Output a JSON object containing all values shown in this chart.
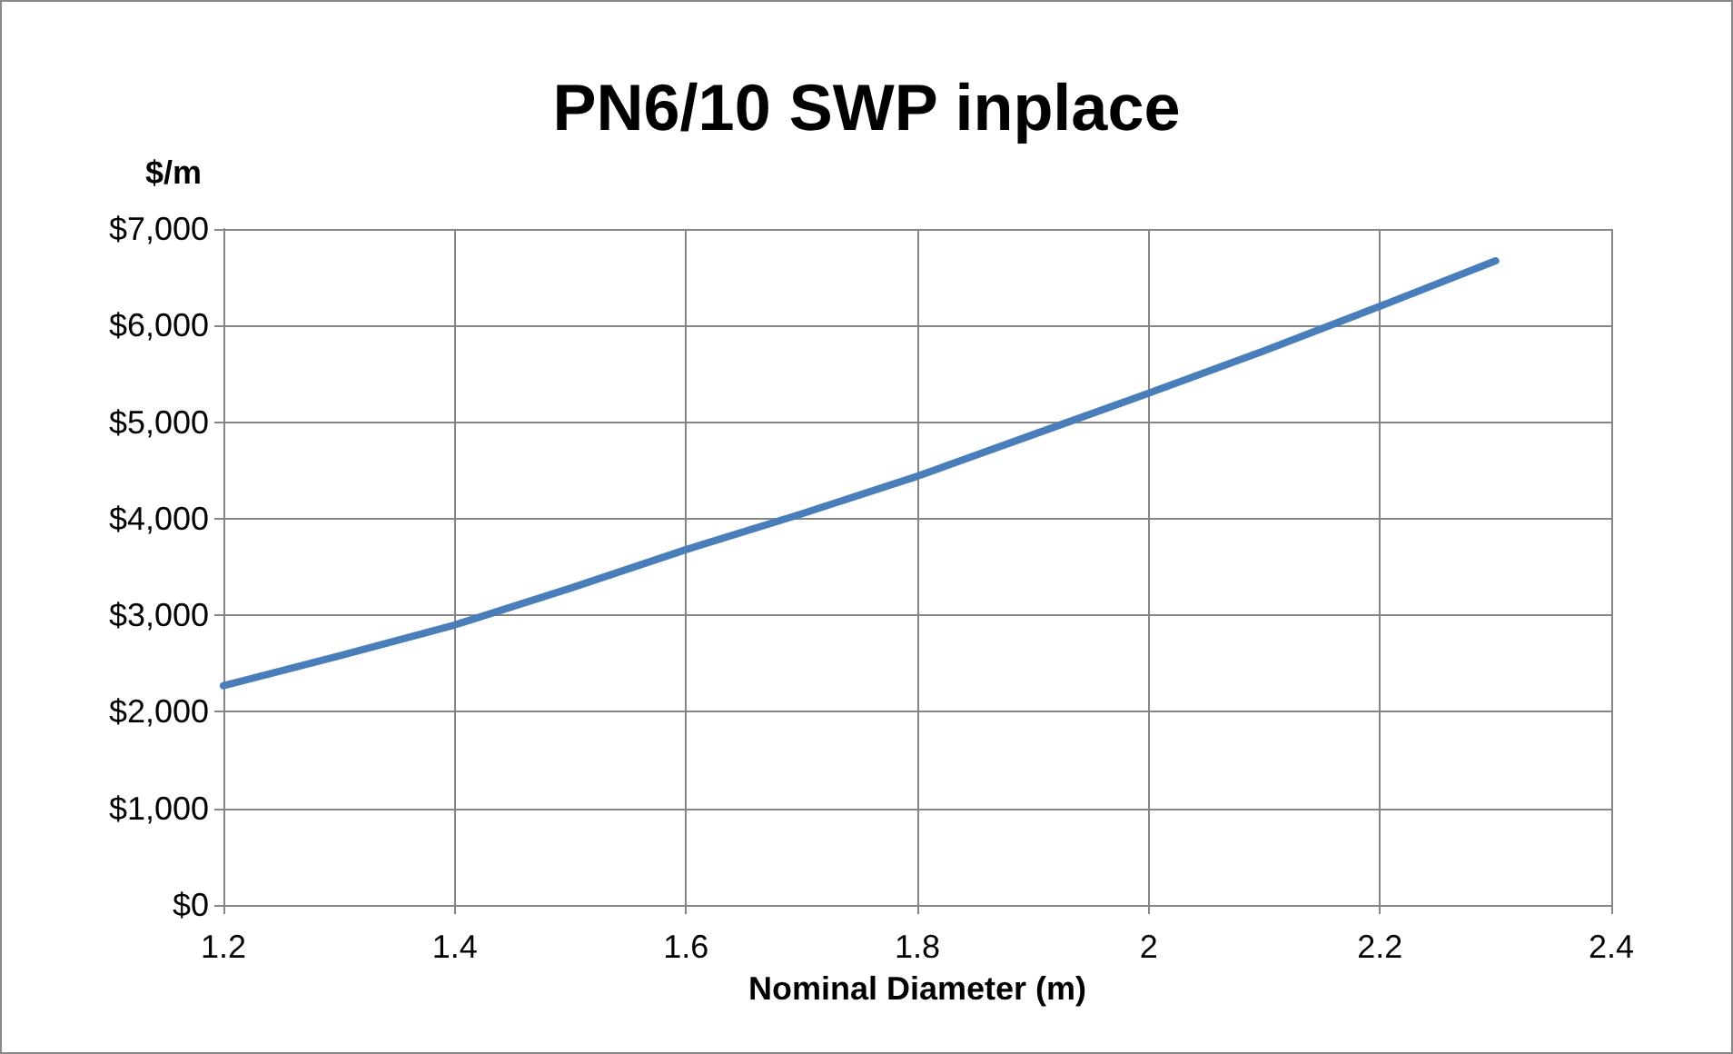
{
  "chart_data": {
    "type": "line",
    "title": "PN6/10 SWP inplace",
    "ylabel": "$/m",
    "xlabel": "Nominal Diameter (m)",
    "x": [
      1.2,
      1.3,
      1.4,
      1.5,
      1.6,
      1.7,
      1.8,
      1.9,
      2.0,
      2.1,
      2.2,
      2.3
    ],
    "series": [
      {
        "color": "#4a7ebb",
        "values": [
          2270,
          2580,
          2900,
          3280,
          3680,
          4050,
          4440,
          4870,
          5300,
          5740,
          6200,
          6670
        ]
      }
    ],
    "xlim": [
      1.2,
      2.4
    ],
    "xticks": [
      1.2,
      1.4,
      1.6,
      1.8,
      2,
      2.2,
      2.4
    ],
    "ylim": [
      0,
      7000
    ],
    "yticks": [
      {
        "value": 0,
        "label": "$0"
      },
      {
        "value": 1000,
        "label": "$1,000"
      },
      {
        "value": 2000,
        "label": "$2,000"
      },
      {
        "value": 3000,
        "label": "$3,000"
      },
      {
        "value": 4000,
        "label": "$4,000"
      },
      {
        "value": 5000,
        "label": "$5,000"
      },
      {
        "value": 6000,
        "label": "$6,000"
      },
      {
        "value": 7000,
        "label": "$7,000"
      }
    ],
    "grid": true,
    "marker": "none",
    "line_style": "solid"
  }
}
